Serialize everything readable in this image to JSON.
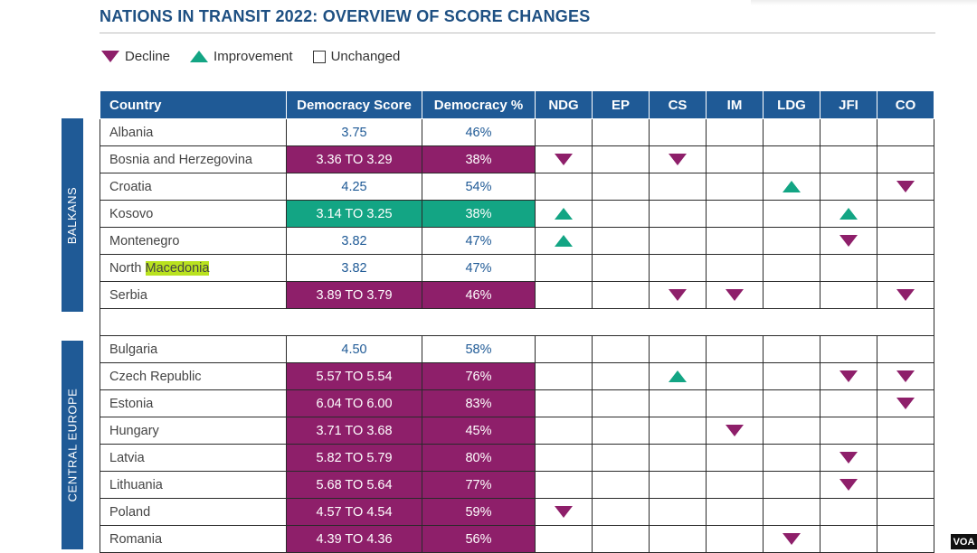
{
  "title": "NATIONS IN TRANSIT 2022: OVERVIEW OF SCORE CHANGES",
  "colors": {
    "decline": "#8e1f6a",
    "improvement": "#13a584",
    "header": "#1f5a96"
  },
  "legend": {
    "decline": "Decline",
    "improvement": "Improvement",
    "unchanged": "Unchanged"
  },
  "headers": [
    "Country",
    "Democracy Score",
    "Democracy %",
    "NDG",
    "EP",
    "CS",
    "IM",
    "LDG",
    "JFI",
    "CO"
  ],
  "regions": {
    "balkans": "BALKANS",
    "central_europe": "CENTRAL EUROPE"
  },
  "highlight_word": "Macedonia",
  "watermark": "VOA",
  "rows": [
    {
      "name": "Albania",
      "score": "3.75",
      "pct": "46%",
      "status": "unchanged",
      "marks": [
        null,
        null,
        null,
        null,
        null,
        null,
        null
      ]
    },
    {
      "name": "Bosnia and Herzegovina",
      "score": "3.36 TO 3.29",
      "pct": "38%",
      "status": "decline",
      "marks": [
        "down",
        null,
        "down",
        null,
        null,
        null,
        null
      ]
    },
    {
      "name": "Croatia",
      "score": "4.25",
      "pct": "54%",
      "status": "unchanged",
      "marks": [
        null,
        null,
        null,
        null,
        "up",
        null,
        "down"
      ]
    },
    {
      "name": "Kosovo",
      "score": "3.14 TO 3.25",
      "pct": "38%",
      "status": "improvement",
      "marks": [
        "up",
        null,
        null,
        null,
        null,
        "up",
        null
      ]
    },
    {
      "name": "Montenegro",
      "score": "3.82",
      "pct": "47%",
      "status": "unchanged",
      "marks": [
        "up",
        null,
        null,
        null,
        null,
        "down",
        null
      ]
    },
    {
      "name": "North Macedonia",
      "score": "3.82",
      "pct": "47%",
      "status": "unchanged",
      "marks": [
        null,
        null,
        null,
        null,
        null,
        null,
        null
      ]
    },
    {
      "name": "Serbia",
      "score": "3.89 TO 3.79",
      "pct": "46%",
      "status": "decline",
      "marks": [
        null,
        null,
        "down",
        "down",
        null,
        null,
        "down"
      ]
    },
    {
      "gap": true
    },
    {
      "name": "Bulgaria",
      "score": "4.50",
      "pct": "58%",
      "status": "unchanged",
      "marks": [
        null,
        null,
        null,
        null,
        null,
        null,
        null
      ]
    },
    {
      "name": "Czech Republic",
      "score": "5.57 TO 5.54",
      "pct": "76%",
      "status": "decline",
      "marks": [
        null,
        null,
        "up",
        null,
        null,
        "down",
        "down"
      ]
    },
    {
      "name": "Estonia",
      "score": "6.04 TO 6.00",
      "pct": "83%",
      "status": "decline",
      "marks": [
        null,
        null,
        null,
        null,
        null,
        null,
        "down"
      ]
    },
    {
      "name": "Hungary",
      "score": "3.71 TO 3.68",
      "pct": "45%",
      "status": "decline",
      "marks": [
        null,
        null,
        null,
        "down",
        null,
        null,
        null
      ]
    },
    {
      "name": "Latvia",
      "score": "5.82 TO 5.79",
      "pct": "80%",
      "status": "decline",
      "marks": [
        null,
        null,
        null,
        null,
        null,
        "down",
        null
      ]
    },
    {
      "name": "Lithuania",
      "score": "5.68 TO 5.64",
      "pct": "77%",
      "status": "decline",
      "marks": [
        null,
        null,
        null,
        null,
        null,
        "down",
        null
      ]
    },
    {
      "name": "Poland",
      "score": "4.57 TO 4.54",
      "pct": "59%",
      "status": "decline",
      "marks": [
        "down",
        null,
        null,
        null,
        null,
        null,
        null
      ]
    },
    {
      "name": "Romania",
      "score": "4.39 TO 4.36",
      "pct": "56%",
      "status": "decline",
      "marks": [
        null,
        null,
        null,
        null,
        "down",
        null,
        null
      ]
    }
  ]
}
